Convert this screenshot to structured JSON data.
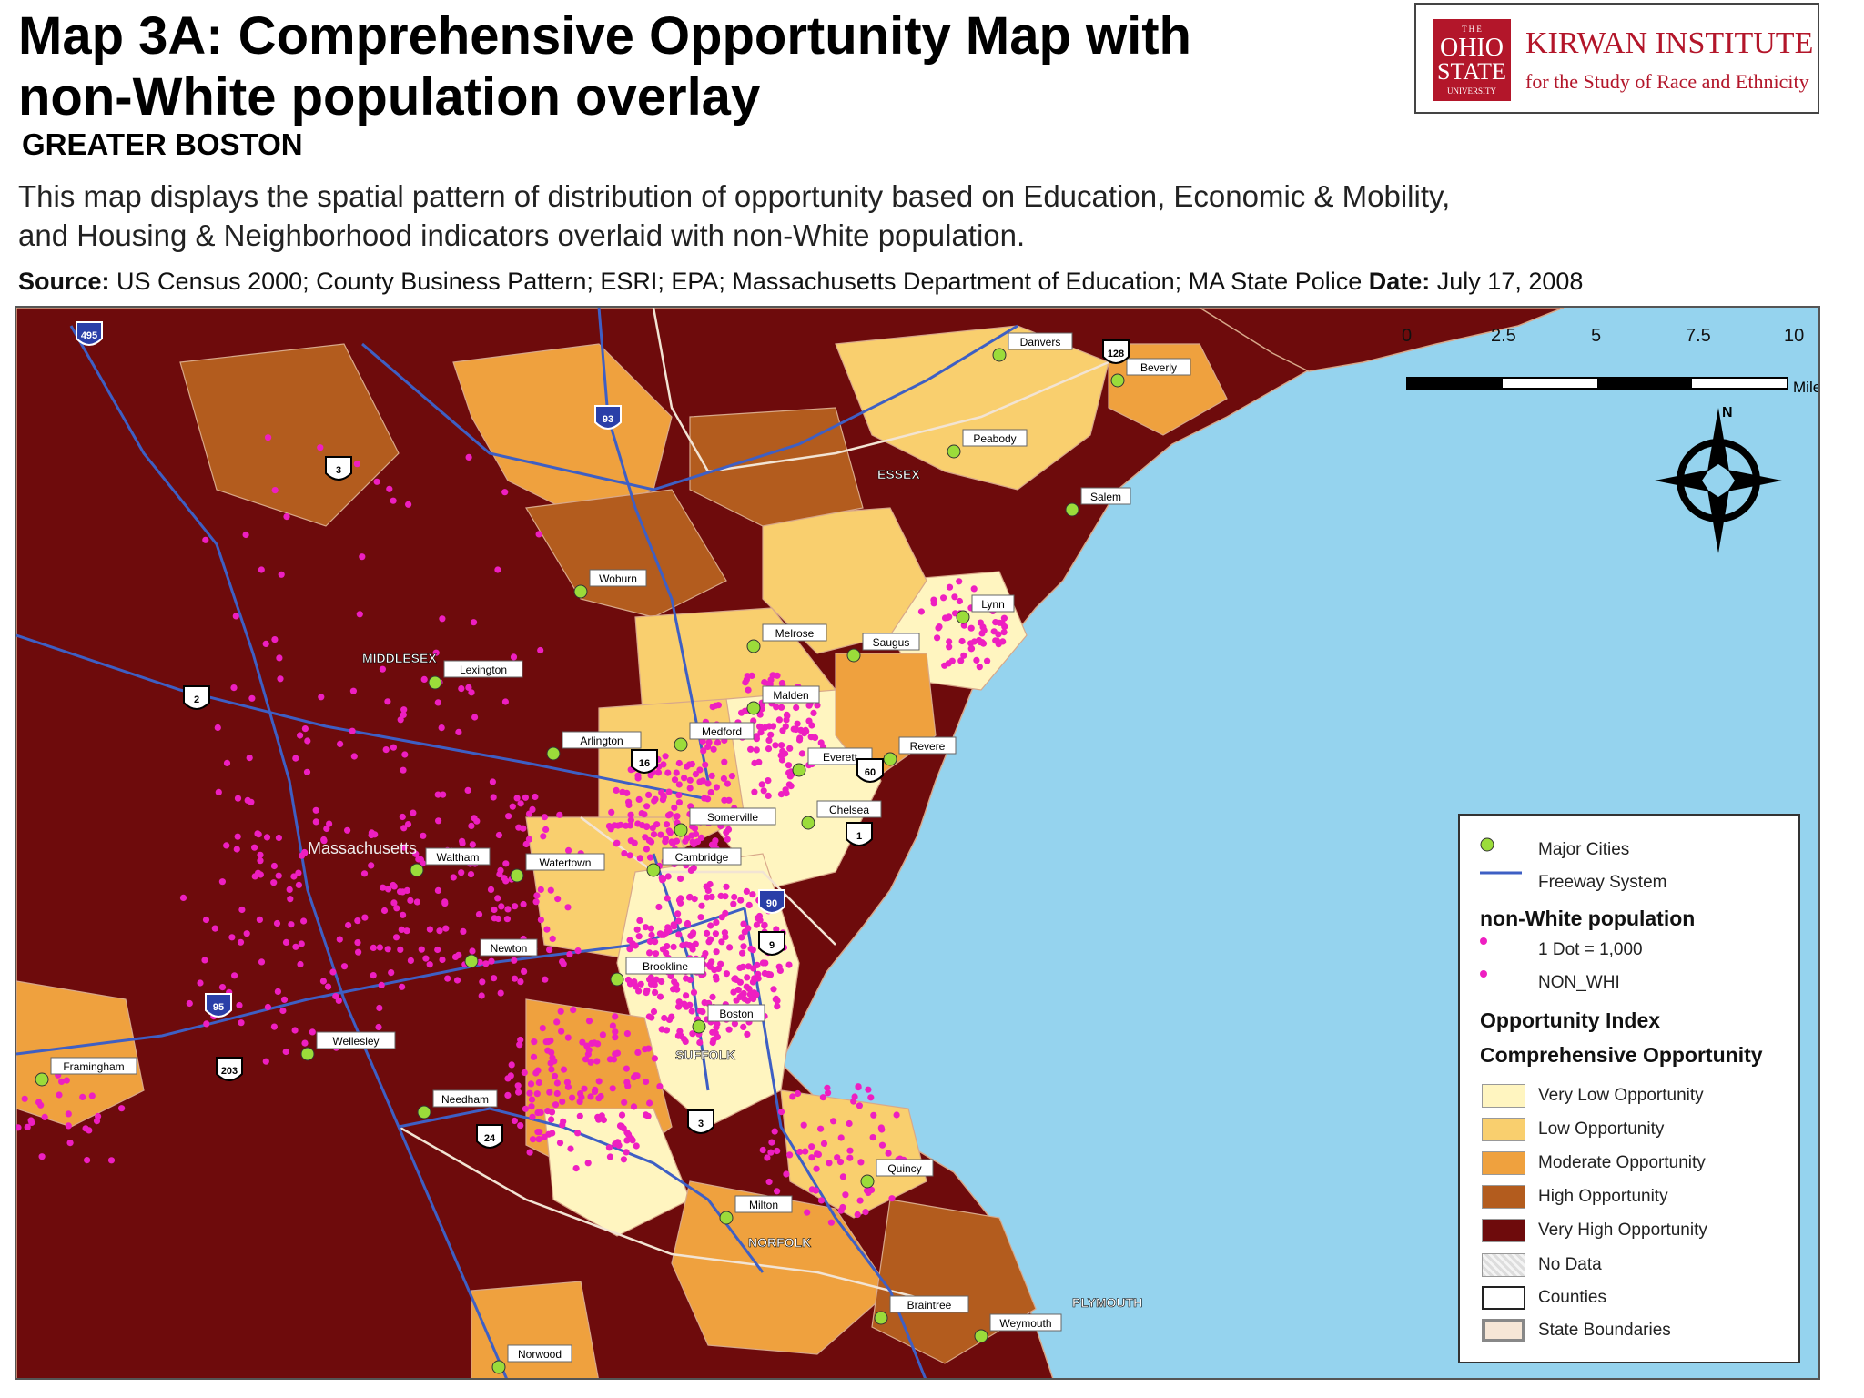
{
  "header": {
    "title_line1": "Map 3A: Comprehensive Opportunity Map with",
    "title_line2": "non-White population overlay",
    "subtitle": "GREATER BOSTON",
    "description_line1": "This map displays the spatial pattern of distribution of opportunity based on Education, Economic & Mobility,",
    "description_line2": "and Housing & Neighborhood indicators overlaid with non-White population.",
    "source_label": "Source:",
    "source_text": "US Census 2000; County Business Pattern; ESRI; EPA; Massachusetts Department of Education; MA State Police",
    "date_label": "Date:",
    "date_text": "July 17, 2008"
  },
  "logo": {
    "seal_text": "THE OHIO STATE UNIVERSITY",
    "name": "KIRWAN INSTITUTE",
    "tagline": "for the Study of Race and Ethnicity"
  },
  "scale_bar": {
    "labels": [
      "0",
      "2.5",
      "5",
      "7.5",
      "10"
    ],
    "unit": "Miles"
  },
  "compass": {
    "north": "N"
  },
  "map_labels": {
    "state": "Massachusetts",
    "counties": [
      "MIDDLESEX",
      "ESSEX",
      "SUFFOLK",
      "NORFOLK",
      "PLYMOUTH"
    ],
    "cities": [
      "Danvers",
      "Beverly",
      "Peabody",
      "Salem",
      "Woburn",
      "Lynn",
      "Saugus",
      "Melrose",
      "Lexington",
      "Malden",
      "Arlington",
      "Medford",
      "Revere",
      "Everett",
      "Chelsea",
      "Somerville",
      "Cambridge",
      "Waltham",
      "Watertown",
      "Newton",
      "Brookline",
      "Boston",
      "Wellesley",
      "Framingham",
      "Needham",
      "Quincy",
      "Milton",
      "Braintree",
      "Weymouth",
      "Norwood"
    ],
    "highways": [
      "495",
      "93",
      "3",
      "2",
      "128",
      "1",
      "16",
      "60",
      "90",
      "9",
      "95",
      "203",
      "24",
      "3"
    ]
  },
  "legend": {
    "major_cities": "Major Cities",
    "freeway": "Freeway System",
    "nonwhite_heading": "non-White population",
    "dot_value": "1 Dot = 1,000",
    "dot_field": "NON_WHI",
    "index_heading": "Opportunity Index",
    "index_subheading": "Comprehensive Opportunity",
    "classes": [
      {
        "label": "Very Low Opportunity",
        "color": "#fff5c0"
      },
      {
        "label": "Low Opportunity",
        "color": "#f9cf6e"
      },
      {
        "label": "Moderate Opportunity",
        "color": "#efa13e"
      },
      {
        "label": "High Opportunity",
        "color": "#b35c1e"
      },
      {
        "label": "Very High Opportunity",
        "color": "#6e0b0c"
      }
    ],
    "no_data": "No Data",
    "counties": "Counties",
    "state_boundaries": "State Boundaries"
  },
  "colors": {
    "water": "#95d3ee",
    "freeway": "#3e5fc4",
    "city_dot": "#9bdc3a",
    "nonwhite_dot": "#ee1fc1",
    "logo_red": "#b3162a"
  }
}
